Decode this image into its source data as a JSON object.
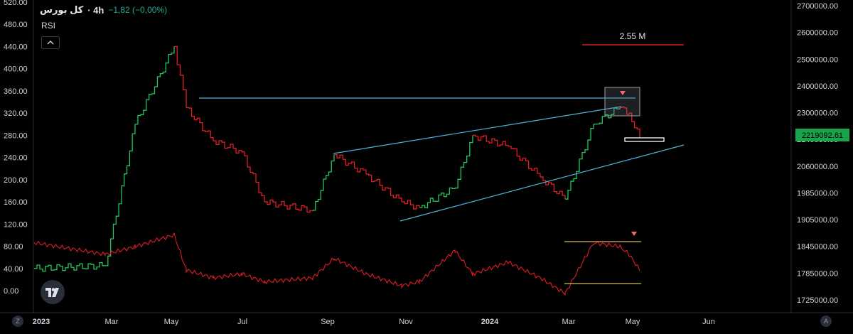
{
  "header": {
    "symbol": "کل بورس",
    "timeframe": "· 4h",
    "change": "−1,82 (−0,00%)",
    "indicator": "RSI"
  },
  "annotation": {
    "text": "2.55 M"
  },
  "price_tag": {
    "value": "2219092.61"
  },
  "colors": {
    "up": "#22c55e",
    "down": "#e11d24",
    "rsi": "#e11d24",
    "trendline": "#4fb3d9",
    "level_line": "#d62020",
    "rsi_band": "#d9b25a",
    "price_tag_bg": "#1aa34a",
    "axis_text": "#d1d4dc",
    "box": "#9aa0a8",
    "marker": "#f06a7a"
  },
  "icons": {
    "logo": "tradingview-logo-icon",
    "collapse": "chevron-up-icon",
    "left_corner": "Z",
    "right_corner": "A"
  },
  "chart_data": {
    "type": "line",
    "title": "کل بورس · 4h",
    "left_axis": {
      "label": "RSI",
      "ticks": [
        "520.00",
        "480.00",
        "440.00",
        "400.00",
        "360.00",
        "320.00",
        "280.00",
        "240.00",
        "200.00",
        "160.00",
        "120.00",
        "80.00",
        "40.00",
        "0.00"
      ]
    },
    "right_axis": {
      "label": "",
      "ticks": [
        "2700000.00",
        "2600000.00",
        "2500000.00",
        "2400000.00",
        "2300000.00",
        "2140000.00",
        "2060000.00",
        "1985000.00",
        "1905000.00",
        "1845000.00",
        "1785000.00",
        "1725000.00"
      ]
    },
    "x_ticks": [
      "2023",
      "Mar",
      "May",
      "Jul",
      "Sep",
      "Nov",
      "2024",
      "Mar",
      "May",
      "Jun"
    ],
    "series": [
      {
        "x": [
          "2023-01",
          "2023-03",
          "2023-04",
          "2023-05",
          "2023-05b",
          "2023-06",
          "2023-07",
          "2023-07b",
          "2023-08",
          "2023-09",
          "2023-10",
          "2023-10b",
          "2023-11",
          "2023-12",
          "2023-12b",
          "2024-01",
          "2024-02",
          "2024-03",
          "2024-03b",
          "2024-04",
          "2024-04b",
          "2024-05"
        ],
        "values": [
          40,
          45,
          300,
          440,
          330,
          270,
          250,
          160,
          145,
          245,
          210,
          160,
          150,
          185,
          280,
          260,
          205,
          165,
          300,
          330,
          320,
          275
        ]
      },
      {
        "name": "RSI",
        "values": [
          85,
          70,
          80,
          95,
          50,
          40,
          45,
          35,
          40,
          65,
          45,
          30,
          35,
          75,
          45,
          60,
          40,
          20,
          85,
          80,
          70,
          50
        ]
      }
    ],
    "annotations": [
      "2.55 M",
      "2219092.61"
    ]
  }
}
